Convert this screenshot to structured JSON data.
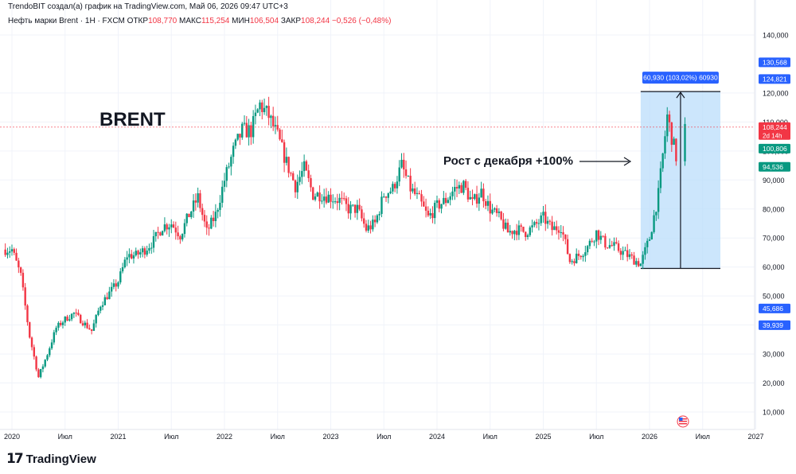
{
  "header": {
    "credit": "TrendoBIT создал(а) график на TradingView.com, Май 06, 2026 09:47 UTC+3"
  },
  "legend": {
    "symbol": "Нефть марки Brent · 1Н · FXCM",
    "open_label": "ОТКР",
    "open": "108,770",
    "high_label": "МАКС",
    "high": "115,254",
    "low_label": "МИН",
    "low": "106,504",
    "close_label": "ЗАКР",
    "close": "108,244",
    "change": "−0,526 (−0,48%)"
  },
  "logo": {
    "text": "TradingView"
  },
  "colors": {
    "up": "#089981",
    "down": "#f23645",
    "range_fill": "#bbdefb",
    "range_label": "#2962ff",
    "price_line": "#f23645",
    "badge_green": "#089981",
    "badge_blue": "#2962ff"
  },
  "chart_data": {
    "type": "candlestick",
    "title": "BRENT",
    "annotation": "Рост с декабря +100%",
    "range_label": "60,930 (103,02%) 60930",
    "range": {
      "from": 59.5,
      "to": 120.5,
      "x_from": "2025-12",
      "x_to": "2026-09"
    },
    "y_axis": {
      "range": [
        0,
        150
      ],
      "ticks": [
        "140,000",
        "120,000",
        "110,000",
        "100,000",
        "90,000",
        "80,000",
        "70,000",
        "60,000",
        "50,000",
        "40,000",
        "30,000",
        "20,000",
        "10,000"
      ]
    },
    "x_axis": {
      "ticks": [
        "2020",
        "Июл",
        "2021",
        "Июл",
        "2022",
        "Июл",
        "2023",
        "Июл",
        "2024",
        "Июл",
        "2025",
        "Июл",
        "2026",
        "Июл",
        "2027"
      ]
    },
    "last_price": {
      "value": "108,244",
      "countdown": "2d 14h"
    },
    "price_labels": [
      {
        "value": "130,568",
        "color": "blue"
      },
      {
        "value": "124,821",
        "color": "blue"
      },
      {
        "value": "100,806",
        "color": "green"
      },
      {
        "value": "94,536",
        "color": "green"
      },
      {
        "value": "45,686",
        "color": "blue"
      },
      {
        "value": "39,939",
        "color": "blue"
      }
    ],
    "closes": [
      {
        "date": "2020-01",
        "close": 66
      },
      {
        "date": "2020-02",
        "close": 57
      },
      {
        "date": "2020-03",
        "close": 36
      },
      {
        "date": "2020-04",
        "close": 22
      },
      {
        "date": "2020-05",
        "close": 30
      },
      {
        "date": "2020-06",
        "close": 39
      },
      {
        "date": "2020-07",
        "close": 42
      },
      {
        "date": "2020-08",
        "close": 44
      },
      {
        "date": "2020-09",
        "close": 41
      },
      {
        "date": "2020-10",
        "close": 38
      },
      {
        "date": "2020-11",
        "close": 47
      },
      {
        "date": "2020-12",
        "close": 51
      },
      {
        "date": "2021-01",
        "close": 55
      },
      {
        "date": "2021-02",
        "close": 64
      },
      {
        "date": "2021-03",
        "close": 64
      },
      {
        "date": "2021-04",
        "close": 66
      },
      {
        "date": "2021-05",
        "close": 69
      },
      {
        "date": "2021-06",
        "close": 74
      },
      {
        "date": "2021-07",
        "close": 75
      },
      {
        "date": "2021-08",
        "close": 71
      },
      {
        "date": "2021-09",
        "close": 78
      },
      {
        "date": "2021-10",
        "close": 84
      },
      {
        "date": "2021-11",
        "close": 72
      },
      {
        "date": "2021-12",
        "close": 78
      },
      {
        "date": "2022-01",
        "close": 90
      },
      {
        "date": "2022-02",
        "close": 100
      },
      {
        "date": "2022-03",
        "close": 107
      },
      {
        "date": "2022-04",
        "close": 107
      },
      {
        "date": "2022-05",
        "close": 116
      },
      {
        "date": "2022-06",
        "close": 112
      },
      {
        "date": "2022-07",
        "close": 105
      },
      {
        "date": "2022-08",
        "close": 96
      },
      {
        "date": "2022-09",
        "close": 88
      },
      {
        "date": "2022-10",
        "close": 94
      },
      {
        "date": "2022-11",
        "close": 85
      },
      {
        "date": "2022-12",
        "close": 85
      },
      {
        "date": "2023-01",
        "close": 84
      },
      {
        "date": "2023-02",
        "close": 83
      },
      {
        "date": "2023-03",
        "close": 80
      },
      {
        "date": "2023-04",
        "close": 80
      },
      {
        "date": "2023-05",
        "close": 73
      },
      {
        "date": "2023-06",
        "close": 75
      },
      {
        "date": "2023-07",
        "close": 85
      },
      {
        "date": "2023-08",
        "close": 87
      },
      {
        "date": "2023-09",
        "close": 95
      },
      {
        "date": "2023-10",
        "close": 87
      },
      {
        "date": "2023-11",
        "close": 83
      },
      {
        "date": "2023-12",
        "close": 77
      },
      {
        "date": "2024-01",
        "close": 81
      },
      {
        "date": "2024-02",
        "close": 83
      },
      {
        "date": "2024-03",
        "close": 87
      },
      {
        "date": "2024-04",
        "close": 88
      },
      {
        "date": "2024-05",
        "close": 82
      },
      {
        "date": "2024-06",
        "close": 86
      },
      {
        "date": "2024-07",
        "close": 80
      },
      {
        "date": "2024-08",
        "close": 77
      },
      {
        "date": "2024-09",
        "close": 72
      },
      {
        "date": "2024-10",
        "close": 73
      },
      {
        "date": "2024-11",
        "close": 72
      },
      {
        "date": "2024-12",
        "close": 74
      },
      {
        "date": "2025-01",
        "close": 77
      },
      {
        "date": "2025-02",
        "close": 73
      },
      {
        "date": "2025-03",
        "close": 74
      },
      {
        "date": "2025-04",
        "close": 62
      },
      {
        "date": "2025-05",
        "close": 64
      },
      {
        "date": "2025-06",
        "close": 67
      },
      {
        "date": "2025-07",
        "close": 72
      },
      {
        "date": "2025-08",
        "close": 68
      },
      {
        "date": "2025-09",
        "close": 67
      },
      {
        "date": "2025-10",
        "close": 65
      },
      {
        "date": "2025-11",
        "close": 63
      },
      {
        "date": "2025-12",
        "close": 61
      },
      {
        "date": "2026-01",
        "close": 70
      },
      {
        "date": "2026-02",
        "close": 85
      },
      {
        "date": "2026-03",
        "close": 112
      },
      {
        "date": "2026-04",
        "close": 98
      },
      {
        "date": "2026-05",
        "close": 108.244
      }
    ]
  }
}
